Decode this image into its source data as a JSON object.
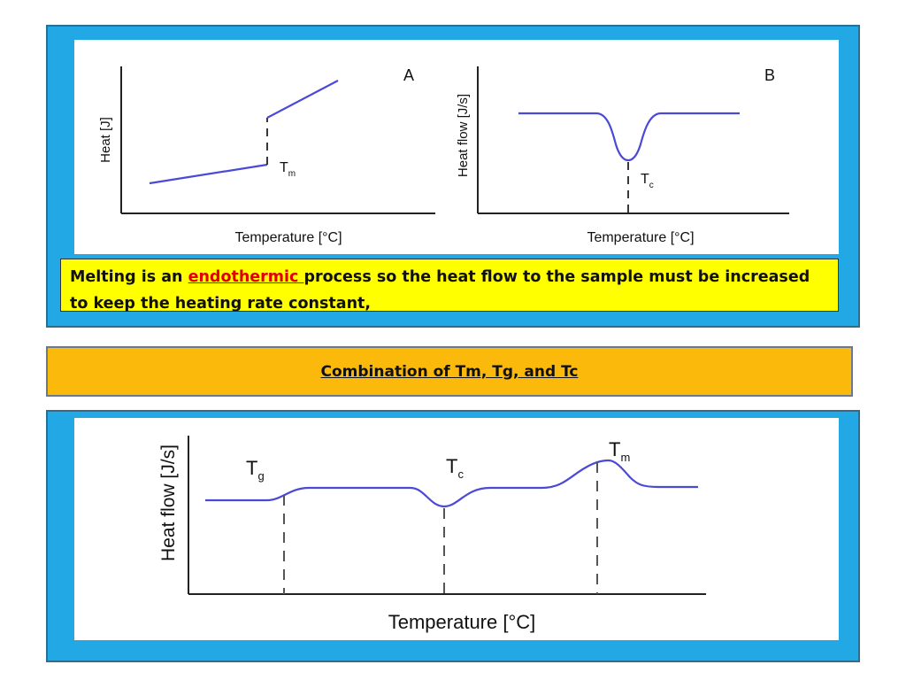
{
  "top_panel": {
    "chart_a": {
      "label": "A",
      "ylabel": "Heat [J]",
      "xlabel": "Temperature [°C]",
      "marker": {
        "main": "T",
        "sub": "m"
      }
    },
    "chart_b": {
      "label": "B",
      "ylabel": "Heat flow [J/s]",
      "xlabel": "Temperature [°C]",
      "marker": {
        "main": "T",
        "sub": "c"
      }
    },
    "note": {
      "before": "Melting is an ",
      "highlight": "endothermic ",
      "after": "process so the heat flow to the sample must be increased to keep the heating rate constant,"
    }
  },
  "banner": {
    "text": "Combination of Tm, Tg, and Tc"
  },
  "bottom_panel": {
    "ylabel": "Heat flow [J/s]",
    "xlabel": "Temperature [°C]",
    "markers": [
      {
        "main": "T",
        "sub": "g"
      },
      {
        "main": "T",
        "sub": "c"
      },
      {
        "main": "T",
        "sub": "m"
      }
    ]
  },
  "colors": {
    "panel_blue": "#23a8e6",
    "curve": "#4a4ad6",
    "note_bg": "#ffff00",
    "highlight": "#e00000",
    "banner_bg": "#fbb90b"
  }
}
